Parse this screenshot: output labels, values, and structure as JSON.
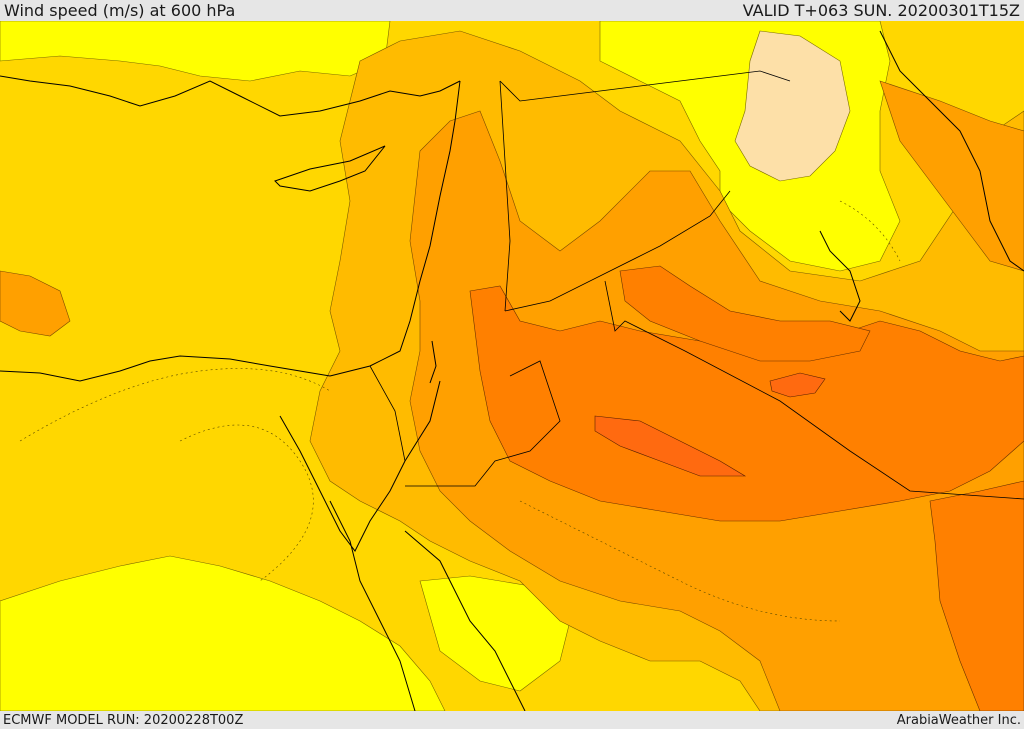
{
  "header": {
    "title": "Wind speed (m/s) at 600 hPa",
    "valid_time": "VALID T+063 SUN. 20200301T15Z"
  },
  "footer": {
    "model_run": "ECMWF MODEL RUN: 20200228T00Z",
    "credit": "ArabiaWeather Inc."
  },
  "map": {
    "variable": "wind speed",
    "level": "600 hPa",
    "colors": {
      "lowest": "#ffff00",
      "low": "#ffd700",
      "moderate": "#ffbb00",
      "elevated": "#ffa000",
      "high": "#ff8000",
      "highest": "#ff6a10",
      "calm_pocket": "#fde0a8",
      "coastline": "#000000"
    }
  }
}
